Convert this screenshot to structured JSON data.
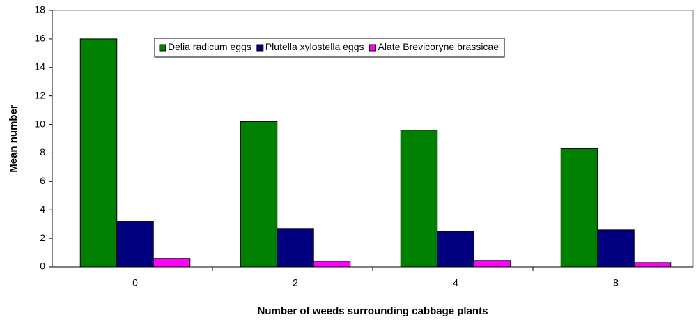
{
  "chart_data": {
    "type": "bar",
    "xlabel": "Number of weeds surrounding cabbage plants",
    "ylabel": "Mean number",
    "categories": [
      "0",
      "2",
      "4",
      "8"
    ],
    "series": [
      {
        "name": "Delia radicum eggs",
        "color": "#008000",
        "values": [
          16,
          10.2,
          9.6,
          8.3
        ]
      },
      {
        "name": "Plutella xylostella eggs",
        "color": "#000080",
        "values": [
          3.2,
          2.7,
          2.5,
          2.6
        ]
      },
      {
        "name": "Alate Brevicoryne brassicae",
        "color": "#ff00ff",
        "values": [
          0.6,
          0.4,
          0.45,
          0.3
        ]
      }
    ],
    "ylim": [
      0,
      18
    ],
    "yticks": [
      0,
      2,
      4,
      6,
      8,
      10,
      12,
      14,
      16,
      18
    ],
    "grid": false,
    "legend": "top"
  }
}
